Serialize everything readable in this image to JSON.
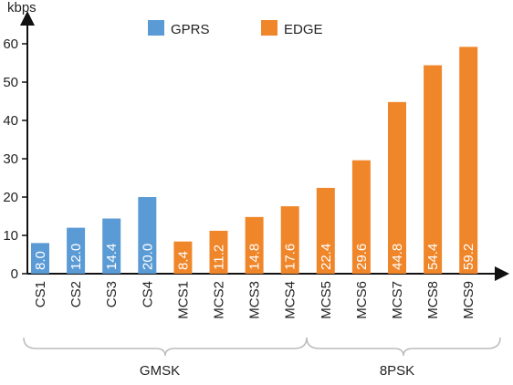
{
  "chart_data": {
    "type": "bar",
    "y_label": "kbps",
    "categories": [
      "CS1",
      "CS2",
      "CS3",
      "CS4",
      "MCS1",
      "MCS2",
      "MCS3",
      "MCS4",
      "MCS5",
      "MCS6",
      "MCS7",
      "MCS8",
      "MCS9"
    ],
    "series": [
      {
        "name": "GPRS",
        "color": "#5b9bd5",
        "values": [
          8.0,
          12.0,
          14.4,
          20.0,
          null,
          null,
          null,
          null,
          null,
          null,
          null,
          null,
          null
        ],
        "value_labels": [
          "8.0",
          "12.0",
          "14.4",
          "20.0",
          null,
          null,
          null,
          null,
          null,
          null,
          null,
          null,
          null
        ]
      },
      {
        "name": "EDGE",
        "color": "#f0862a",
        "values": [
          null,
          null,
          null,
          null,
          8.4,
          11.2,
          14.8,
          17.6,
          22.4,
          29.6,
          44.8,
          54.4,
          59.2
        ],
        "value_labels": [
          null,
          null,
          null,
          null,
          "8.4",
          "11.2",
          "14.8",
          "17.6",
          "22.4",
          "29.6",
          "44.8",
          "54.4",
          "59.2"
        ]
      }
    ],
    "groups": [
      "GMSK",
      "8PSK"
    ],
    "ylim": [
      0,
      65
    ],
    "yticks": [
      0,
      10,
      20,
      30,
      40,
      50,
      60
    ]
  }
}
